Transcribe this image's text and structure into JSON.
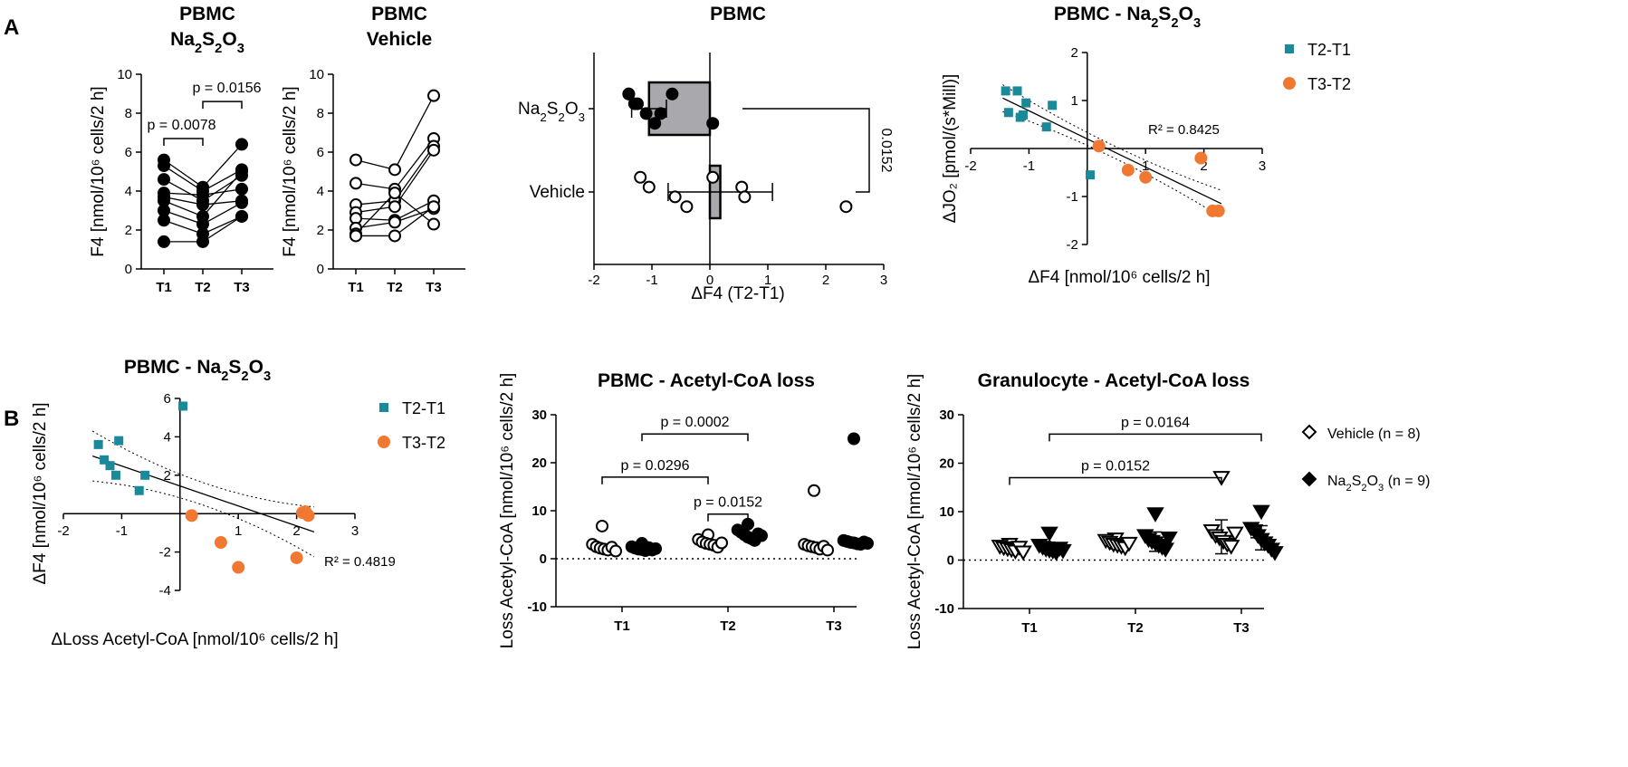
{
  "figure": {
    "panel_labels": [
      "A",
      "B"
    ],
    "colors": {
      "t2_t1": "#1a8a9a",
      "t3_t2": "#f07830",
      "bar_fill": "#a8a8ad",
      "black": "#000000"
    }
  },
  "chart_data": [
    {
      "id": "a1",
      "type": "line",
      "title_main": "PBMC",
      "title_sub": "Na₂S₂O₃",
      "categories": [
        "T1",
        "T2",
        "T3"
      ],
      "ylabel": "F4 [nmol/10⁶ cells/2 h]",
      "ylim": [
        0,
        10
      ],
      "yticks": [
        0,
        2,
        4,
        6,
        8,
        10
      ],
      "series": [
        {
          "values": [
            5.6,
            4.2,
            6.4
          ]
        },
        {
          "values": [
            5.3,
            4.0,
            5.1
          ]
        },
        {
          "values": [
            4.6,
            3.5,
            4.8
          ]
        },
        {
          "values": [
            3.9,
            3.8,
            4.1
          ]
        },
        {
          "values": [
            3.7,
            3.3,
            3.5
          ]
        },
        {
          "values": [
            3.5,
            2.7,
            5.0
          ]
        },
        {
          "values": [
            3.0,
            2.3,
            3.4
          ]
        },
        {
          "values": [
            2.5,
            1.8,
            2.7
          ]
        },
        {
          "values": [
            1.4,
            1.4,
            2.7
          ]
        }
      ],
      "marker": "filled",
      "brackets": [
        {
          "from": "T1",
          "to": "T2",
          "label": "p = 0.0078"
        },
        {
          "from": "T2",
          "to": "T3",
          "label": "p = 0.0156"
        }
      ]
    },
    {
      "id": "a2",
      "type": "line",
      "title_main": "PBMC",
      "title_sub": "Vehicle",
      "categories": [
        "T1",
        "T2",
        "T3"
      ],
      "ylabel": "F4 [nmol/10⁶ cells/2 h]",
      "ylim": [
        0,
        10
      ],
      "yticks": [
        0,
        2,
        4,
        6,
        8,
        10
      ],
      "series": [
        {
          "values": [
            5.6,
            5.1,
            8.9
          ]
        },
        {
          "values": [
            4.4,
            4.1,
            6.7
          ]
        },
        {
          "values": [
            3.3,
            3.5,
            6.3
          ]
        },
        {
          "values": [
            2.9,
            3.2,
            6.1
          ]
        },
        {
          "values": [
            2.6,
            2.5,
            3.5
          ]
        },
        {
          "values": [
            2.1,
            2.4,
            3.1
          ]
        },
        {
          "values": [
            1.8,
            3.9,
            2.3
          ]
        },
        {
          "values": [
            1.7,
            1.7,
            3.2
          ]
        }
      ],
      "marker": "open"
    },
    {
      "id": "a3",
      "type": "bar",
      "title": "PBMC",
      "xlabel": "ΔF4 (T2-T1)",
      "xlim": [
        -2,
        3
      ],
      "xticks": [
        -2,
        -1,
        0,
        1,
        2,
        3
      ],
      "categories": [
        "Na₂S₂O₃",
        "Vehicle"
      ],
      "means": [
        -1.05,
        0.18
      ],
      "error_sd": [
        0.3,
        0.9
      ],
      "points": [
        [
          -1.4,
          -1.25,
          -1.1,
          -0.95,
          -0.65,
          -1.3,
          -0.85,
          0.05,
          -1.4
        ],
        [
          -1.2,
          -1.05,
          -0.6,
          -0.4,
          0.05,
          0.55,
          0.6,
          2.35
        ]
      ],
      "significance": "0.0152"
    },
    {
      "id": "a4",
      "type": "scatter",
      "title_main": "PBMC - Na₂S₂O₃",
      "xlabel": "ΔF4 [nmol/10⁶ cells/2 h]",
      "ylabel": "ΔJO₂ [pmol/(s*Mill)]",
      "xlim": [
        -2,
        3
      ],
      "ylim": [
        -2,
        2
      ],
      "xticks": [
        -2,
        -1,
        1,
        2,
        3
      ],
      "yticks": [
        -2,
        -1,
        1,
        2
      ],
      "series": [
        {
          "name": "T2-T1",
          "x": [
            -1.4,
            -1.2,
            -1.05,
            -1.35,
            -1.15,
            -1.1,
            -0.6,
            -0.7,
            0.05
          ],
          "y": [
            1.2,
            1.2,
            0.95,
            0.75,
            0.65,
            0.7,
            0.9,
            0.45,
            -0.55
          ]
        },
        {
          "name": "T3-T2",
          "x": [
            0.2,
            0.7,
            1.0,
            1.95,
            2.15,
            2.25
          ],
          "y": [
            0.05,
            -0.45,
            -0.6,
            -0.2,
            -1.3,
            -1.3
          ]
        }
      ],
      "fit": {
        "x": [
          -1.45,
          2.3
        ],
        "y": [
          1.05,
          -1.15
        ]
      },
      "r2": "R² = 0.8425",
      "legend": [
        "T2-T1",
        "T3-T2"
      ]
    },
    {
      "id": "b1",
      "type": "scatter",
      "title_main": "PBMC - Na₂S₂O₃",
      "xlabel": "ΔLoss Acetyl-CoA [nmol/10⁶ cells/2 h]",
      "ylabel": "ΔF4 [nmol/10⁶ cells/2 h]",
      "xlim": [
        -2,
        3
      ],
      "ylim": [
        -4,
        6
      ],
      "xticks": [
        -2,
        -1,
        1,
        2,
        3
      ],
      "yticks": [
        -4,
        -2,
        2,
        4,
        6
      ],
      "series": [
        {
          "name": "T2-T1",
          "x": [
            0.05,
            -1.4,
            -1.05,
            -1.3,
            -1.1,
            -1.2,
            -0.6,
            -0.7
          ],
          "y": [
            5.6,
            3.6,
            3.8,
            2.8,
            2.0,
            2.5,
            2.0,
            1.2
          ]
        },
        {
          "name": "T3-T2",
          "x": [
            0.2,
            0.7,
            1.0,
            2.0,
            2.15,
            2.2,
            2.1
          ],
          "y": [
            -0.1,
            -1.5,
            -2.8,
            -2.3,
            0.1,
            -0.1,
            0.05
          ]
        }
      ],
      "fit": {
        "x": [
          -1.5,
          2.3
        ],
        "y": [
          3.0,
          -0.95
        ]
      },
      "r2": "R² = 0.4819",
      "legend": [
        "T2-T1",
        "T3-T2"
      ]
    },
    {
      "id": "b2",
      "type": "scatter",
      "title": "PBMC - Acetyl-CoA loss",
      "ylabel": "Loss Acetyl-CoA [nmol/10⁶ cells/2 h]",
      "categories": [
        "T1",
        "T2",
        "T3"
      ],
      "ylim": [
        -10,
        30
      ],
      "yticks": [
        -10,
        0,
        10,
        20,
        30
      ],
      "groups": [
        {
          "cat": "T1",
          "marker": "open-circle",
          "values": [
            6.8,
            3.0,
            2.5,
            2.2,
            2.0,
            1.8,
            2.4,
            1.6
          ]
        },
        {
          "cat": "T1",
          "marker": "filled-circle",
          "values": [
            3.2,
            2.5,
            2.2,
            2.0,
            1.9,
            1.7,
            2.3,
            1.8,
            2.1
          ]
        },
        {
          "cat": "T2",
          "marker": "open-circle",
          "values": [
            5.0,
            4.0,
            3.5,
            3.2,
            3.0,
            2.8,
            2.4,
            3.3
          ]
        },
        {
          "cat": "T2",
          "marker": "filled-circle",
          "values": [
            7.2,
            6.0,
            5.5,
            5.0,
            4.5,
            4.2,
            3.8,
            5.2,
            4.8
          ]
        },
        {
          "cat": "T3",
          "marker": "open-circle",
          "values": [
            14.2,
            3.0,
            2.7,
            2.5,
            2.3,
            2.0,
            2.6,
            1.8
          ]
        },
        {
          "cat": "T3",
          "marker": "filled-circle",
          "values": [
            25.0,
            3.8,
            3.6,
            3.4,
            3.3,
            3.1,
            3.0,
            3.5,
            3.2
          ]
        }
      ],
      "brackets": [
        {
          "label": "p = 0.0002"
        },
        {
          "label": "p = 0.0296"
        },
        {
          "label": "p = 0.0152"
        }
      ]
    },
    {
      "id": "b3",
      "type": "scatter",
      "title": "Granulocyte - Acetyl-CoA loss",
      "ylabel": "Loss Acetyl-CoA [nmol/10⁶ cells/2 h]",
      "categories": [
        "T1",
        "T2",
        "T3"
      ],
      "ylim": [
        -10,
        30
      ],
      "yticks": [
        -10,
        0,
        10,
        20,
        30
      ],
      "groups": [
        {
          "cat": "T1",
          "marker": "open-triangle",
          "mean": 2.4,
          "sd": 0.8,
          "values": [
            3.2,
            2.8,
            2.5,
            2.3,
            2.1,
            1.8,
            2.6,
            1.6
          ]
        },
        {
          "cat": "T1",
          "marker": "filled-triangle",
          "mean": 2.5,
          "sd": 1.2,
          "values": [
            5.5,
            3.0,
            2.6,
            2.2,
            2.0,
            1.8,
            1.5,
            2.4,
            1.9
          ]
        },
        {
          "cat": "T2",
          "marker": "open-triangle",
          "mean": 3.3,
          "sd": 1.0,
          "values": [
            4.3,
            4.0,
            3.6,
            3.2,
            3.0,
            2.8,
            2.5,
            3.4
          ]
        },
        {
          "cat": "T2",
          "marker": "filled-triangle",
          "mean": 3.8,
          "sd": 2.0,
          "values": [
            9.5,
            5.0,
            4.2,
            3.8,
            3.5,
            3.0,
            2.6,
            2.2,
            4.5
          ]
        },
        {
          "cat": "T3",
          "marker": "open-triangle",
          "mean": 4.8,
          "sd": 3.5,
          "values": [
            17.0,
            6.0,
            5.0,
            4.5,
            3.8,
            3.2,
            2.8,
            5.5
          ]
        },
        {
          "cat": "T3",
          "marker": "filled-triangle",
          "mean": 4.6,
          "sd": 2.5,
          "values": [
            10.0,
            6.5,
            6.0,
            5.0,
            4.2,
            3.5,
            3.0,
            2.2,
            1.5
          ]
        }
      ],
      "brackets": [
        {
          "label": "p = 0.0164"
        },
        {
          "label": "p = 0.0152"
        }
      ],
      "legend": [
        "Vehicle (n = 8)",
        "Na₂S₂O₃ (n = 9)"
      ]
    }
  ]
}
